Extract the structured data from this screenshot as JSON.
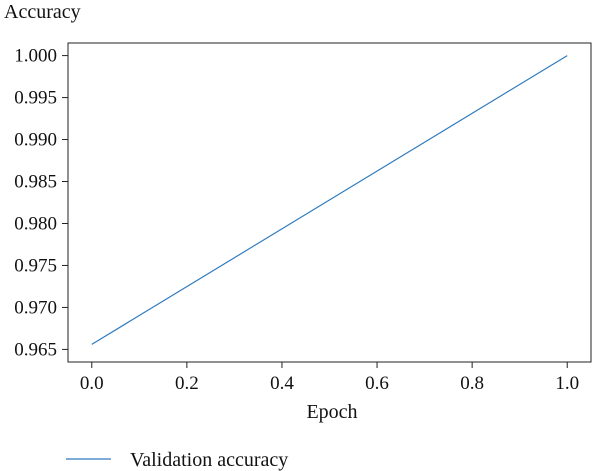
{
  "chart_data": {
    "type": "line",
    "title": "",
    "xlabel": "Epoch",
    "ylabel": "Accuracy",
    "xlim": [
      -0.05,
      1.05
    ],
    "ylim": [
      0.9635,
      1.0015
    ],
    "x_ticks": [
      0.0,
      0.2,
      0.4,
      0.6,
      0.8,
      1.0
    ],
    "x_tick_labels": [
      "0.0",
      "0.2",
      "0.4",
      "0.6",
      "0.8",
      "1.0"
    ],
    "y_ticks": [
      0.965,
      0.97,
      0.975,
      0.98,
      0.985,
      0.99,
      0.995,
      1.0
    ],
    "y_tick_labels": [
      "0.965",
      "0.970",
      "0.975",
      "0.980",
      "0.985",
      "0.990",
      "0.995",
      "1.000"
    ],
    "grid": false,
    "legend_position": "bottom-left",
    "series": [
      {
        "name": "Validation accuracy",
        "color": "#2f7bbf",
        "x": [
          0.0,
          1.0
        ],
        "y": [
          0.9656,
          1.0
        ]
      }
    ]
  }
}
